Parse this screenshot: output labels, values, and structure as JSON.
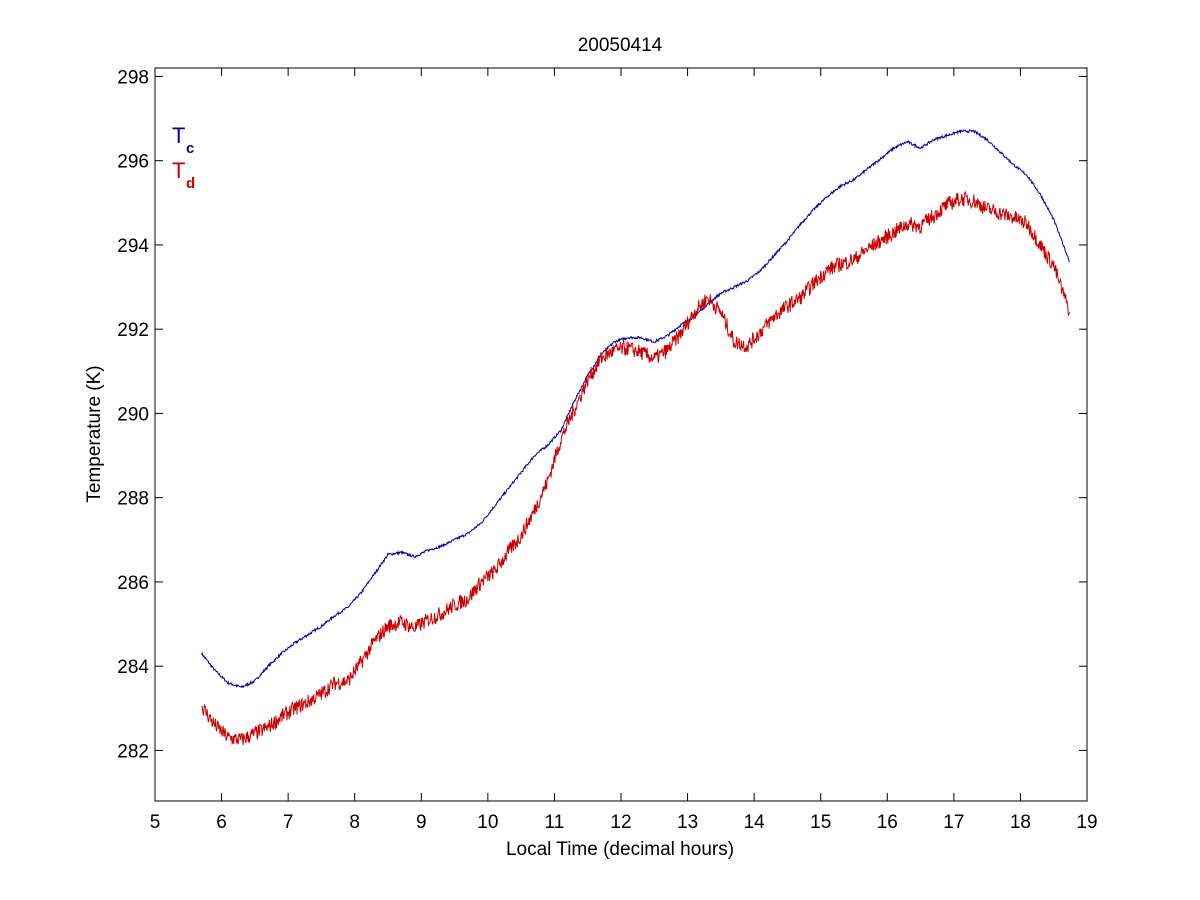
{
  "chart_data": {
    "type": "line",
    "title": "20050414",
    "xlabel": "Local Time (decimal hours)",
    "ylabel": "Temperature (K)",
    "xlim": [
      5,
      19
    ],
    "ylim": [
      280.8,
      298.2
    ],
    "xticks": [
      5,
      6,
      7,
      8,
      9,
      10,
      11,
      12,
      13,
      14,
      15,
      16,
      17,
      18,
      19
    ],
    "yticks": [
      282,
      284,
      286,
      288,
      290,
      292,
      294,
      296,
      298
    ],
    "grid": false,
    "legend_position": "top-left",
    "series": [
      {
        "name": "Tc",
        "name_main": "T",
        "name_sub": "c",
        "color": "#0000aa",
        "noise": 0.03,
        "x": [
          5.7,
          5.9,
          6.1,
          6.3,
          6.5,
          6.7,
          6.9,
          7.1,
          7.3,
          7.5,
          7.7,
          7.9,
          8.1,
          8.3,
          8.5,
          8.7,
          8.9,
          9.1,
          9.3,
          9.5,
          9.7,
          9.9,
          10.1,
          10.3,
          10.5,
          10.7,
          10.9,
          11.1,
          11.3,
          11.5,
          11.7,
          11.9,
          12.1,
          12.3,
          12.5,
          12.7,
          12.9,
          13.1,
          13.3,
          13.5,
          13.7,
          13.9,
          14.1,
          14.3,
          14.5,
          14.7,
          14.9,
          15.1,
          15.3,
          15.5,
          15.7,
          15.9,
          16.1,
          16.3,
          16.5,
          16.7,
          16.9,
          17.1,
          17.3,
          17.5,
          17.7,
          17.9,
          18.1,
          18.3,
          18.5,
          18.74
        ],
        "y": [
          284.3,
          283.9,
          283.6,
          283.5,
          283.65,
          284.0,
          284.3,
          284.55,
          284.75,
          284.95,
          285.2,
          285.4,
          285.75,
          286.2,
          286.65,
          286.7,
          286.6,
          286.75,
          286.85,
          287.0,
          287.15,
          287.4,
          287.8,
          288.2,
          288.6,
          289.0,
          289.25,
          289.6,
          290.3,
          290.9,
          291.4,
          291.7,
          291.8,
          291.8,
          291.7,
          291.85,
          292.1,
          292.3,
          292.6,
          292.85,
          293.0,
          293.15,
          293.4,
          293.75,
          294.1,
          294.5,
          294.85,
          295.15,
          295.4,
          295.55,
          295.8,
          296.05,
          296.3,
          296.45,
          296.3,
          296.5,
          296.6,
          296.7,
          296.7,
          296.5,
          296.2,
          295.9,
          295.65,
          295.2,
          294.6,
          293.6
        ]
      },
      {
        "name": "Td",
        "name_main": "T",
        "name_sub": "d",
        "color": "#cc0000",
        "noise": 0.18,
        "x": [
          5.7,
          5.9,
          6.1,
          6.3,
          6.5,
          6.7,
          6.9,
          7.1,
          7.3,
          7.5,
          7.7,
          7.9,
          8.1,
          8.3,
          8.5,
          8.7,
          8.9,
          9.1,
          9.3,
          9.5,
          9.7,
          9.9,
          10.1,
          10.3,
          10.5,
          10.7,
          10.9,
          11.1,
          11.3,
          11.5,
          11.7,
          11.9,
          12.1,
          12.3,
          12.5,
          12.7,
          12.9,
          13.1,
          13.3,
          13.5,
          13.7,
          13.9,
          14.1,
          14.3,
          14.5,
          14.7,
          14.9,
          15.1,
          15.3,
          15.5,
          15.7,
          15.9,
          16.1,
          16.3,
          16.5,
          16.7,
          16.9,
          17.1,
          17.3,
          17.5,
          17.7,
          17.9,
          18.1,
          18.3,
          18.5,
          18.74
        ],
        "y": [
          283.05,
          282.6,
          282.3,
          282.25,
          282.4,
          282.55,
          282.8,
          283.0,
          283.15,
          283.35,
          283.6,
          283.65,
          284.1,
          284.6,
          284.95,
          285.05,
          284.9,
          285.1,
          285.25,
          285.45,
          285.6,
          286.0,
          286.25,
          286.7,
          287.1,
          287.7,
          288.4,
          289.4,
          290.1,
          290.8,
          291.3,
          291.5,
          291.55,
          291.45,
          291.3,
          291.5,
          291.9,
          292.4,
          292.75,
          292.4,
          291.7,
          291.6,
          291.95,
          292.3,
          292.55,
          292.75,
          293.1,
          293.4,
          293.55,
          293.65,
          293.9,
          294.1,
          294.3,
          294.5,
          294.45,
          294.7,
          294.95,
          295.1,
          295.05,
          294.85,
          294.75,
          294.65,
          294.5,
          294.0,
          293.5,
          292.4
        ]
      }
    ]
  }
}
